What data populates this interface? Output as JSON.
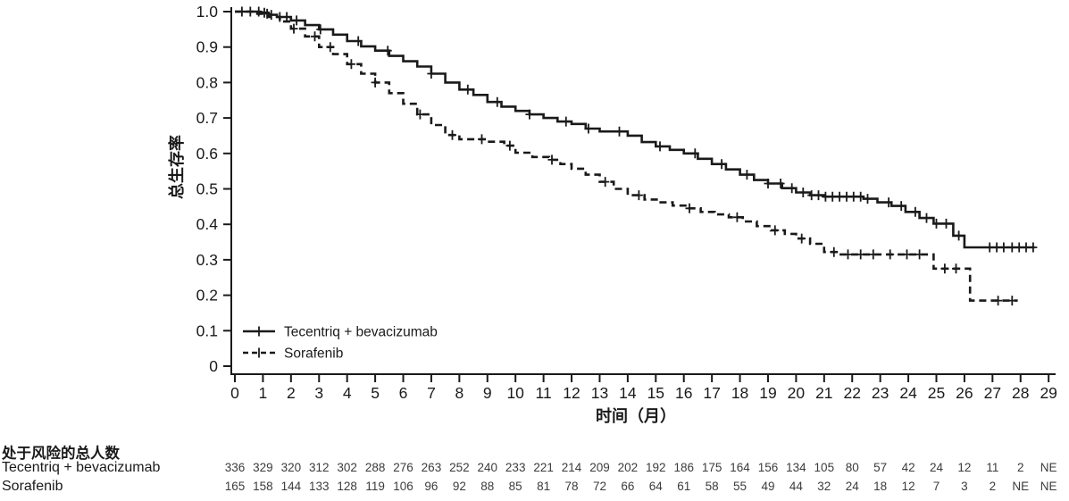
{
  "chart_data": {
    "type": "line",
    "subtype": "kaplan-meier-step",
    "title": "",
    "xlabel": "时间（月）",
    "ylabel": "总生存率",
    "xlim": [
      0,
      29
    ],
    "ylim": [
      0,
      1.0
    ],
    "grid": false,
    "legend_position": "inside-bottom-left",
    "axis_color": "#1a1a1a",
    "xticks": [
      0,
      1,
      2,
      3,
      4,
      5,
      6,
      7,
      8,
      9,
      10,
      11,
      12,
      13,
      14,
      15,
      16,
      17,
      18,
      19,
      20,
      21,
      22,
      23,
      24,
      25,
      26,
      27,
      28,
      29
    ],
    "yticks": [
      1.0,
      0.9,
      0.8,
      0.7,
      0.6,
      0.5,
      0.4,
      0.3,
      0.2,
      0.1,
      0
    ],
    "ytick_labels": [
      "1.0",
      "0.9",
      "0.8",
      "0.7",
      "0.6",
      "0.5",
      "0.4",
      "0.3",
      "0.2",
      "0.1",
      "0"
    ],
    "series": [
      {
        "name": "Tecentriq + bevacizumab",
        "line_style": "solid",
        "color": "#1a1a1a",
        "steps": [
          [
            0,
            1.0
          ],
          [
            0.9,
            0.997
          ],
          [
            1.2,
            0.991
          ],
          [
            1.5,
            0.985
          ],
          [
            2.0,
            0.975
          ],
          [
            2.5,
            0.962
          ],
          [
            3.0,
            0.95
          ],
          [
            3.5,
            0.935
          ],
          [
            4.0,
            0.917
          ],
          [
            4.5,
            0.902
          ],
          [
            5.0,
            0.89
          ],
          [
            5.5,
            0.875
          ],
          [
            6.0,
            0.86
          ],
          [
            6.5,
            0.845
          ],
          [
            7.0,
            0.825
          ],
          [
            7.5,
            0.8
          ],
          [
            8.0,
            0.78
          ],
          [
            8.5,
            0.765
          ],
          [
            9.0,
            0.745
          ],
          [
            9.5,
            0.732
          ],
          [
            10.0,
            0.72
          ],
          [
            10.5,
            0.71
          ],
          [
            11.0,
            0.7
          ],
          [
            11.5,
            0.69
          ],
          [
            12.0,
            0.683
          ],
          [
            12.5,
            0.67
          ],
          [
            13.0,
            0.662
          ],
          [
            14.0,
            0.65
          ],
          [
            14.5,
            0.632
          ],
          [
            15.0,
            0.62
          ],
          [
            15.5,
            0.61
          ],
          [
            16.0,
            0.6
          ],
          [
            16.5,
            0.585
          ],
          [
            17.0,
            0.57
          ],
          [
            17.5,
            0.555
          ],
          [
            18.0,
            0.54
          ],
          [
            18.5,
            0.525
          ],
          [
            19.0,
            0.515
          ],
          [
            19.5,
            0.502
          ],
          [
            20.0,
            0.49
          ],
          [
            20.5,
            0.482
          ],
          [
            21.0,
            0.478
          ],
          [
            22.4,
            0.472
          ],
          [
            22.9,
            0.462
          ],
          [
            23.4,
            0.452
          ],
          [
            23.9,
            0.435
          ],
          [
            24.4,
            0.418
          ],
          [
            24.9,
            0.402
          ],
          [
            25.6,
            0.368
          ],
          [
            26.0,
            0.335
          ],
          [
            28.5,
            0.335
          ]
        ],
        "censor_times": [
          0.25,
          0.55,
          0.85,
          1.05,
          1.3,
          1.6,
          1.85,
          2.2,
          3.05,
          4.4,
          5.45,
          7.0,
          8.3,
          9.35,
          10.5,
          11.8,
          12.6,
          13.7,
          15.15,
          16.4,
          17.35,
          18.25,
          19.0,
          19.45,
          19.85,
          20.25,
          20.55,
          20.8,
          21.05,
          21.3,
          21.55,
          21.8,
          22.05,
          22.3,
          22.55,
          23.3,
          23.75,
          24.25,
          24.65,
          25.0,
          25.35,
          25.8,
          26.9,
          27.15,
          27.4,
          27.7,
          27.95,
          28.2,
          28.45
        ],
        "end_time": 28.5
      },
      {
        "name": "Sorafenib",
        "line_style": "dashed",
        "color": "#1a1a1a",
        "steps": [
          [
            0,
            1.0
          ],
          [
            0.8,
            0.994
          ],
          [
            1.2,
            0.985
          ],
          [
            1.6,
            0.972
          ],
          [
            2.0,
            0.952
          ],
          [
            2.5,
            0.93
          ],
          [
            3.0,
            0.9
          ],
          [
            3.5,
            0.88
          ],
          [
            4.0,
            0.852
          ],
          [
            4.5,
            0.825
          ],
          [
            5.0,
            0.8
          ],
          [
            5.5,
            0.77
          ],
          [
            6.0,
            0.74
          ],
          [
            6.5,
            0.71
          ],
          [
            7.0,
            0.68
          ],
          [
            7.5,
            0.652
          ],
          [
            8.0,
            0.64
          ],
          [
            9.0,
            0.633
          ],
          [
            9.6,
            0.622
          ],
          [
            10.0,
            0.602
          ],
          [
            10.6,
            0.59
          ],
          [
            11.2,
            0.582
          ],
          [
            11.6,
            0.57
          ],
          [
            12.0,
            0.557
          ],
          [
            12.5,
            0.54
          ],
          [
            13.0,
            0.52
          ],
          [
            13.5,
            0.5
          ],
          [
            14.0,
            0.482
          ],
          [
            14.6,
            0.47
          ],
          [
            15.1,
            0.462
          ],
          [
            15.6,
            0.453
          ],
          [
            16.1,
            0.445
          ],
          [
            16.6,
            0.435
          ],
          [
            17.1,
            0.428
          ],
          [
            17.6,
            0.42
          ],
          [
            18.1,
            0.408
          ],
          [
            18.6,
            0.395
          ],
          [
            19.1,
            0.383
          ],
          [
            19.6,
            0.373
          ],
          [
            20.0,
            0.36
          ],
          [
            20.5,
            0.345
          ],
          [
            21.0,
            0.322
          ],
          [
            21.5,
            0.315
          ],
          [
            24.9,
            0.275
          ],
          [
            26.2,
            0.185
          ],
          [
            27.9,
            0.185
          ]
        ],
        "censor_times": [
          1.15,
          2.1,
          2.85,
          3.4,
          4.15,
          5.0,
          6.6,
          7.75,
          8.8,
          9.8,
          11.3,
          13.2,
          14.4,
          16.2,
          17.9,
          19.25,
          20.2,
          21.35,
          21.85,
          22.3,
          22.75,
          23.35,
          23.95,
          24.4,
          25.3,
          25.7,
          27.2,
          27.7
        ],
        "end_time": 27.9
      }
    ]
  },
  "risk_table": {
    "header": "处于风险的总人数",
    "rows": [
      {
        "label": "Tecentriq + bevacizumab",
        "counts": [
          "336",
          "329",
          "320",
          "312",
          "302",
          "288",
          "276",
          "263",
          "252",
          "240",
          "233",
          "221",
          "214",
          "209",
          "202",
          "192",
          "186",
          "175",
          "164",
          "156",
          "134",
          "105",
          "80",
          "57",
          "42",
          "24",
          "12",
          "11",
          "2",
          "NE"
        ]
      },
      {
        "label": "Sorafenib",
        "counts": [
          "165",
          "158",
          "144",
          "133",
          "128",
          "119",
          "106",
          "96",
          "92",
          "88",
          "85",
          "81",
          "78",
          "72",
          "66",
          "64",
          "61",
          "58",
          "55",
          "49",
          "44",
          "32",
          "24",
          "18",
          "12",
          "7",
          "3",
          "2",
          "NE",
          "NE"
        ]
      }
    ]
  }
}
